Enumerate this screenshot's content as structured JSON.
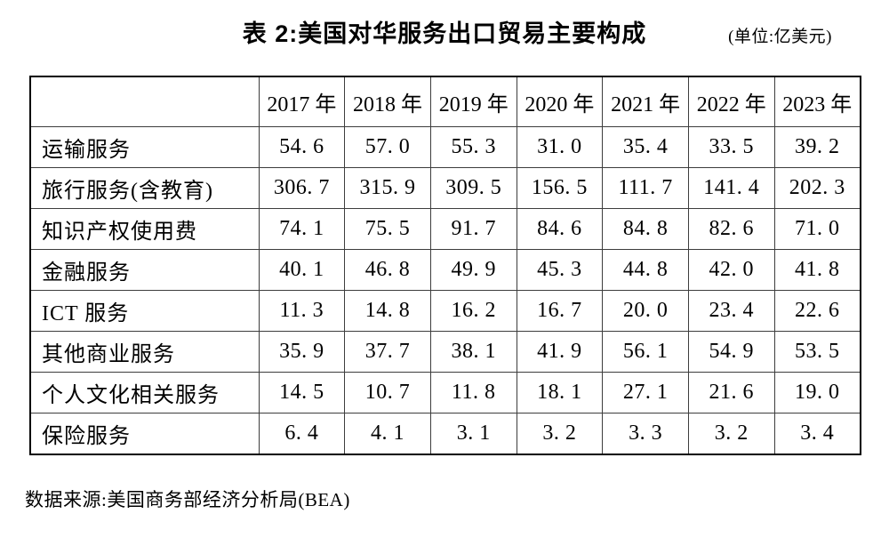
{
  "header": {
    "title": "表 2:美国对华服务出口贸易主要构成",
    "unit": "(单位:亿美元)"
  },
  "chart_data": {
    "type": "table",
    "title": "表 2:美国对华服务出口贸易主要构成",
    "unit_label": "(单位:亿美元)",
    "columns": [
      "2017 年",
      "2018 年",
      "2019 年",
      "2020 年",
      "2021 年",
      "2022 年",
      "2023 年"
    ],
    "rows": [
      {
        "label": "运输服务",
        "values": [
          54.6,
          57.0,
          55.3,
          31.0,
          35.4,
          33.5,
          39.2
        ]
      },
      {
        "label": "旅行服务(含教育)",
        "values": [
          306.7,
          315.9,
          309.5,
          156.5,
          111.7,
          141.4,
          202.3
        ]
      },
      {
        "label": "知识产权使用费",
        "values": [
          74.1,
          75.5,
          91.7,
          84.6,
          84.8,
          82.6,
          71.0
        ]
      },
      {
        "label": "金融服务",
        "values": [
          40.1,
          46.8,
          49.9,
          45.3,
          44.8,
          42.0,
          41.8
        ]
      },
      {
        "label": "ICT 服务",
        "values": [
          11.3,
          14.8,
          16.2,
          16.7,
          20.0,
          23.4,
          22.6
        ]
      },
      {
        "label": "其他商业服务",
        "values": [
          35.9,
          37.7,
          38.1,
          41.9,
          56.1,
          54.9,
          53.5
        ]
      },
      {
        "label": "个人文化相关服务",
        "values": [
          14.5,
          10.7,
          11.8,
          18.1,
          27.1,
          21.6,
          19.0
        ]
      },
      {
        "label": "保险服务",
        "values": [
          6.4,
          4.1,
          3.1,
          3.2,
          3.3,
          3.2,
          3.4
        ]
      }
    ]
  },
  "footer": {
    "source": "数据来源:美国商务部经济分析局(BEA)"
  },
  "colors": {
    "text": "#000000",
    "border_outer": "#000000",
    "border_inner": "#3d3d3d",
    "background": "#ffffff"
  }
}
